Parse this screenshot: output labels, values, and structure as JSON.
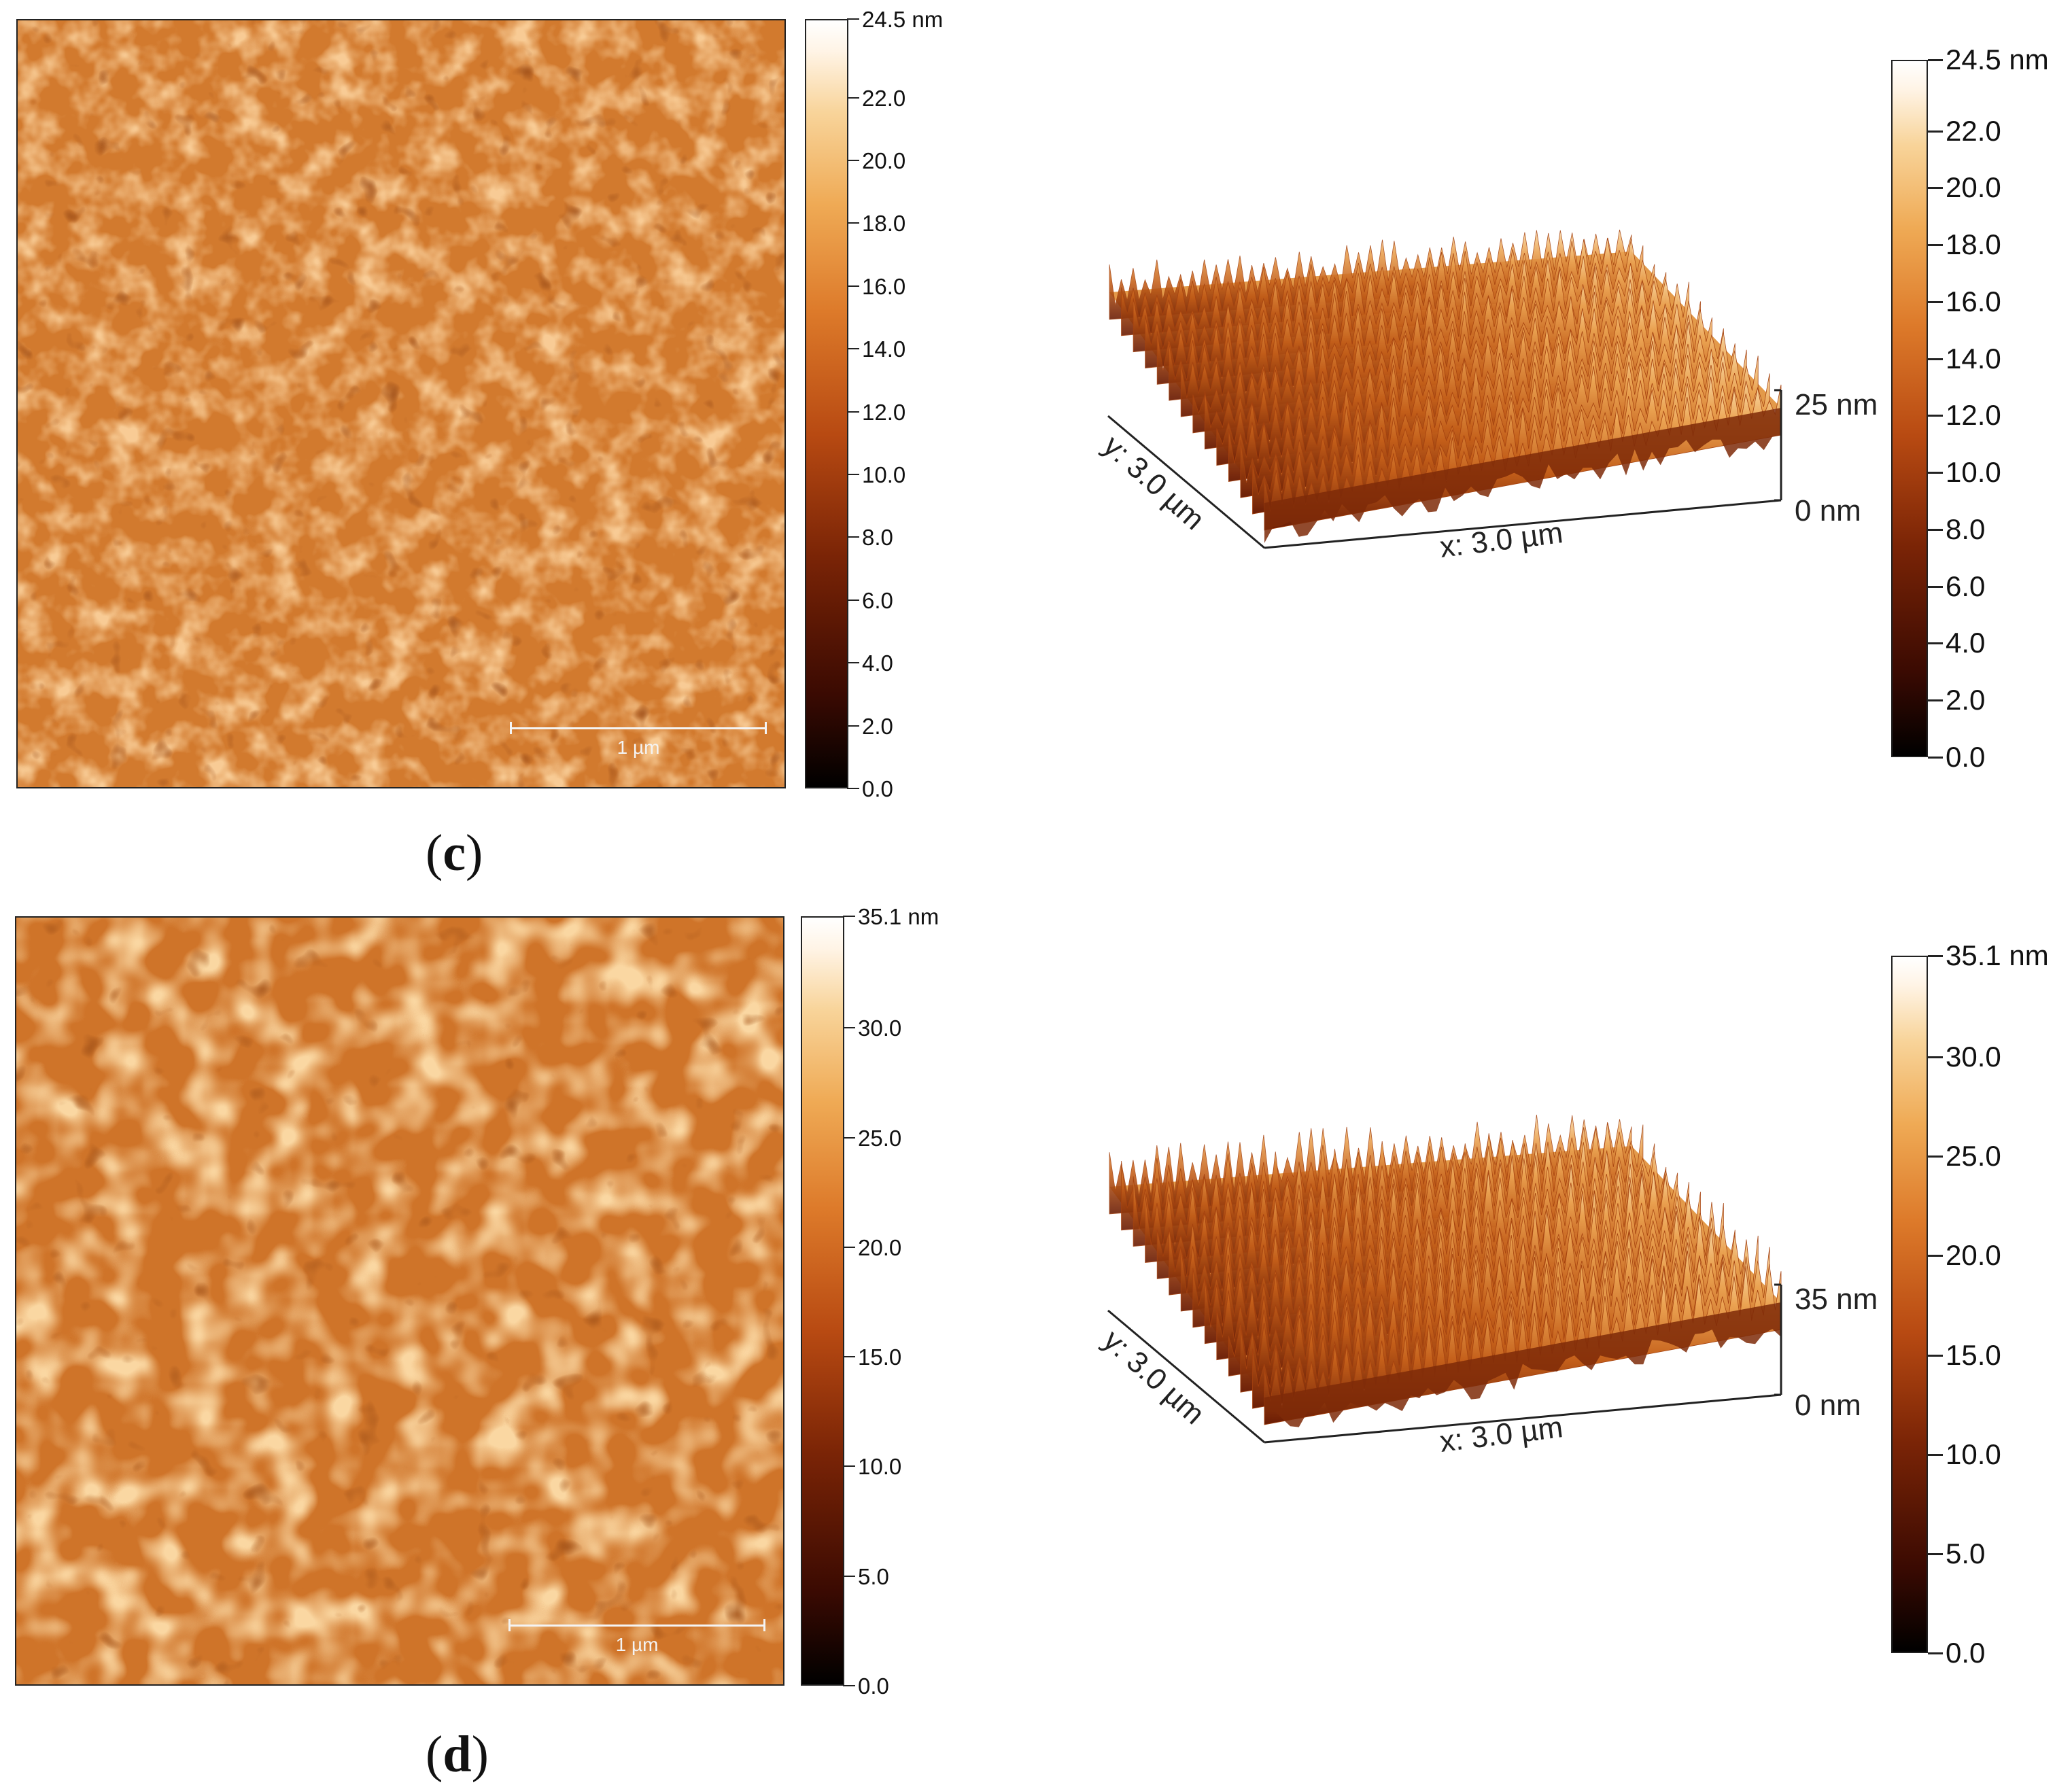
{
  "panels": [
    {
      "label_open": "(",
      "label_letter": "c",
      "label_close": ")",
      "map2d": {
        "scale_bar_label": "1 µm",
        "colorbar_ticks": [
          "24.5 nm",
          "22.0",
          "20.0",
          "18.0",
          "16.0",
          "14.0",
          "12.0",
          "10.0",
          "8.0",
          "6.0",
          "4.0",
          "2.0",
          "0.0"
        ],
        "colorbar_tick_values": [
          24.5,
          22.0,
          20.0,
          18.0,
          16.0,
          14.0,
          12.0,
          10.0,
          8.0,
          6.0,
          4.0,
          2.0,
          0.0
        ],
        "max": 24.5
      },
      "view3d": {
        "z_top_label": "25 nm",
        "z_bottom_label": "0 nm",
        "x_label": "x: 3.0 µm",
        "y_label": "y: 3.0 µm"
      },
      "colorbar3d_ticks": [
        "24.5 nm",
        "22.0",
        "20.0",
        "18.0",
        "16.0",
        "14.0",
        "12.0",
        "10.0",
        "8.0",
        "6.0",
        "4.0",
        "2.0",
        "0.0"
      ],
      "colorbar3d_tick_values": [
        24.5,
        22.0,
        20.0,
        18.0,
        16.0,
        14.0,
        12.0,
        10.0,
        8.0,
        6.0,
        4.0,
        2.0,
        0.0
      ]
    },
    {
      "label_open": "(",
      "label_letter": "d",
      "label_close": ")",
      "map2d": {
        "scale_bar_label": "1 µm",
        "colorbar_ticks": [
          "35.1 nm",
          "30.0",
          "25.0",
          "20.0",
          "15.0",
          "10.0",
          "5.0",
          "0.0"
        ],
        "colorbar_tick_values": [
          35.1,
          30.0,
          25.0,
          20.0,
          15.0,
          10.0,
          5.0,
          0.0
        ],
        "max": 35.1
      },
      "view3d": {
        "z_top_label": "35 nm",
        "z_bottom_label": "0 nm",
        "x_label": "x: 3.0 µm",
        "y_label": "y: 3.0 µm"
      },
      "colorbar3d_ticks": [
        "35.1 nm",
        "30.0",
        "25.0",
        "20.0",
        "15.0",
        "10.0",
        "5.0",
        "0.0"
      ],
      "colorbar3d_tick_values": [
        35.1,
        30.0,
        25.0,
        20.0,
        15.0,
        10.0,
        5.0,
        0.0
      ]
    }
  ],
  "colors": {
    "colormap": [
      "#000000",
      "#3a0a02",
      "#7a2406",
      "#b84a12",
      "#dd7a2a",
      "#efaa55",
      "#f8d49a",
      "#fff4e6",
      "#ffffff"
    ]
  }
}
